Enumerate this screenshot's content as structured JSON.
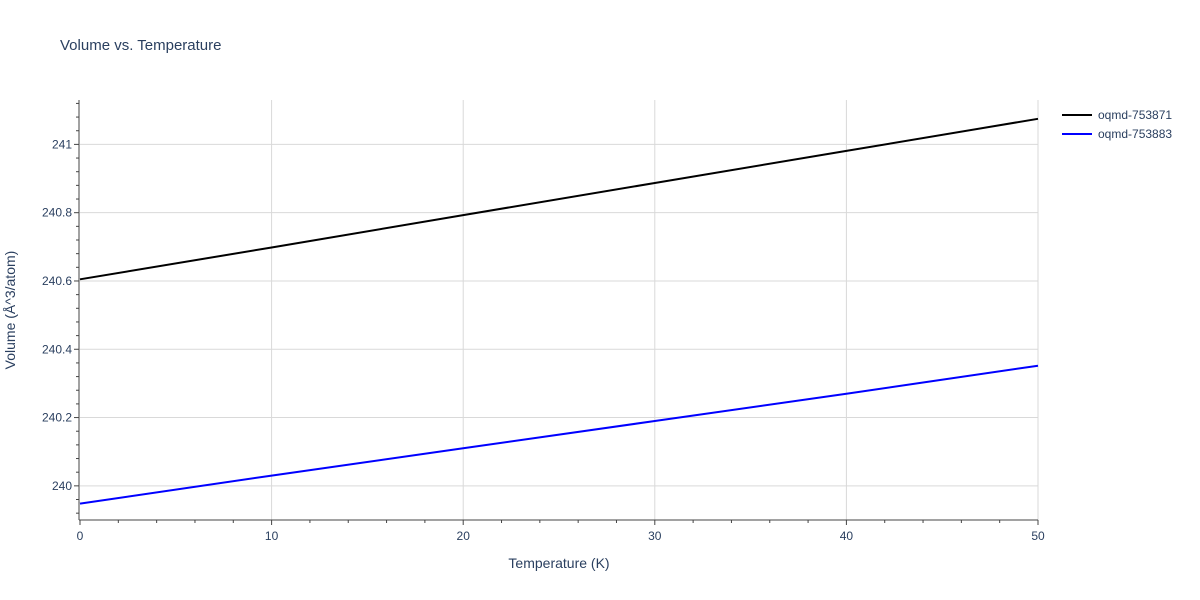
{
  "chart_data": {
    "type": "line",
    "title": "Volume vs. Temperature",
    "xlabel": "Temperature (K)",
    "ylabel": "Volume (Å^3/atom)",
    "xlim": [
      0,
      50
    ],
    "ylim": [
      239.9,
      241.13
    ],
    "x_ticks": [
      0,
      10,
      20,
      30,
      40,
      50
    ],
    "x_tick_labels": [
      "0",
      "10",
      "20",
      "30",
      "40",
      "50"
    ],
    "y_ticks": [
      240,
      240.2,
      240.4,
      240.6,
      240.8,
      241
    ],
    "y_tick_labels": [
      "240",
      "240.2",
      "240.4",
      "240.6",
      "240.8",
      "241"
    ],
    "grid": true,
    "legend_position": "top-right",
    "series": [
      {
        "name": "oqmd-753871",
        "color": "#000000",
        "x": [
          0,
          10,
          20,
          30,
          40,
          50
        ],
        "values": [
          240.605,
          240.698,
          240.793,
          240.887,
          240.981,
          241.075
        ]
      },
      {
        "name": "oqmd-753883",
        "color": "#0000ff",
        "x": [
          0,
          10,
          20,
          30,
          40,
          50
        ],
        "values": [
          239.948,
          240.03,
          240.11,
          240.19,
          240.27,
          240.352
        ]
      }
    ]
  }
}
